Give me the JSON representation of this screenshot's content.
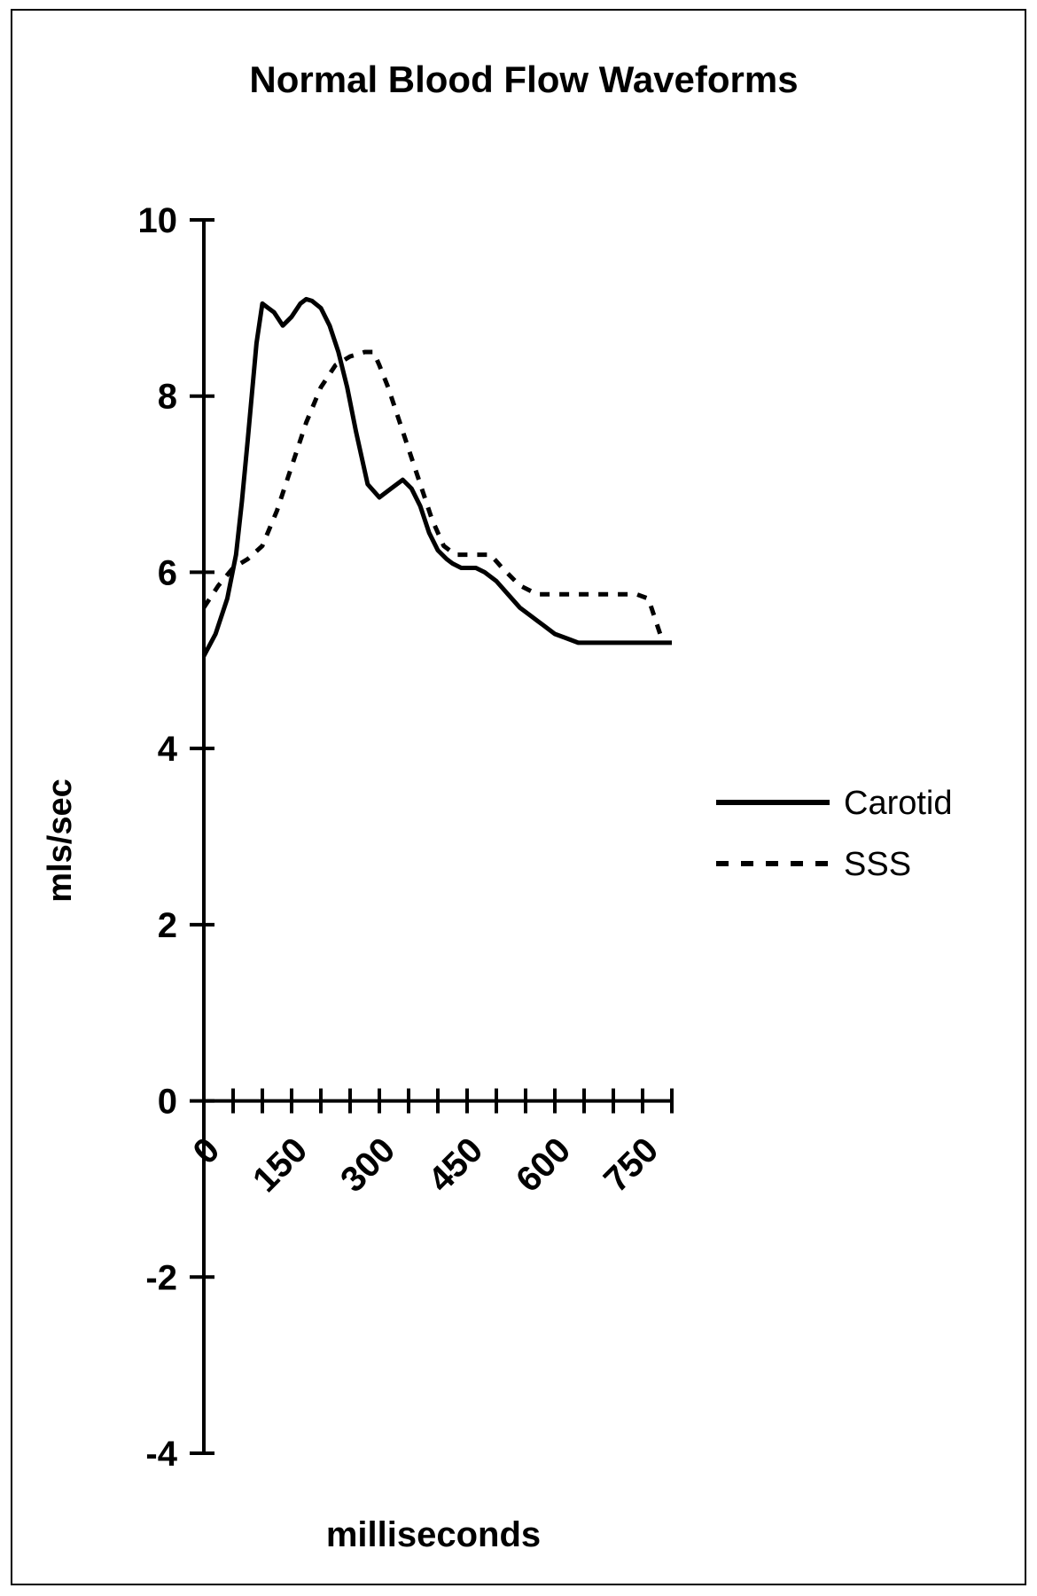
{
  "chart_data": {
    "type": "line",
    "title": "Normal Blood Flow Waveforms",
    "xlabel": "milliseconds",
    "ylabel": "mls/sec",
    "xlim": [
      0,
      800
    ],
    "ylim": [
      -4,
      10
    ],
    "yticks": [
      -4,
      -2,
      0,
      2,
      4,
      6,
      8,
      10
    ],
    "xtick_labels": [
      "0",
      "150",
      "300",
      "450",
      "600",
      "750"
    ],
    "xtick_label_values": [
      0,
      150,
      300,
      450,
      600,
      750
    ],
    "xtick_minor_step": 50,
    "grid": false,
    "legend_position": "right",
    "series": [
      {
        "name": "Carotid",
        "style": "solid",
        "color": "#000000",
        "x": [
          0,
          20,
          40,
          55,
          65,
          75,
          90,
          100,
          110,
          120,
          135,
          150,
          165,
          175,
          185,
          200,
          215,
          230,
          245,
          260,
          280,
          300,
          320,
          340,
          355,
          370,
          385,
          400,
          415,
          425,
          440,
          450,
          465,
          480,
          500,
          520,
          540,
          560,
          570,
          580,
          600,
          620,
          640,
          660,
          680,
          700,
          720,
          740,
          760,
          780,
          800
        ],
        "y": [
          5.05,
          5.3,
          5.7,
          6.2,
          6.8,
          7.5,
          8.6,
          9.05,
          9.0,
          8.95,
          8.8,
          8.9,
          9.05,
          9.1,
          9.08,
          9.0,
          8.8,
          8.5,
          8.1,
          7.6,
          7.0,
          6.85,
          6.95,
          7.05,
          6.95,
          6.75,
          6.45,
          6.25,
          6.15,
          6.1,
          6.05,
          6.05,
          6.05,
          6.0,
          5.9,
          5.75,
          5.6,
          5.5,
          5.45,
          5.4,
          5.3,
          5.25,
          5.2,
          5.2,
          5.2,
          5.2,
          5.2,
          5.2,
          5.2,
          5.2,
          5.2
        ]
      },
      {
        "name": "SSS",
        "style": "dashed",
        "color": "#000000",
        "x": [
          0,
          25,
          50,
          75,
          100,
          125,
          150,
          175,
          200,
          225,
          250,
          275,
          290,
          300,
          315,
          330,
          345,
          360,
          375,
          390,
          410,
          430,
          450,
          470,
          490,
          510,
          540,
          570,
          600,
          630,
          660,
          700,
          740,
          760,
          780
        ],
        "y": [
          5.6,
          5.85,
          6.05,
          6.15,
          6.3,
          6.7,
          7.2,
          7.7,
          8.1,
          8.35,
          8.45,
          8.5,
          8.5,
          8.35,
          8.1,
          7.8,
          7.5,
          7.2,
          6.9,
          6.6,
          6.3,
          6.2,
          6.2,
          6.2,
          6.2,
          6.05,
          5.85,
          5.75,
          5.75,
          5.75,
          5.75,
          5.75,
          5.75,
          5.7,
          5.3
        ]
      }
    ]
  }
}
